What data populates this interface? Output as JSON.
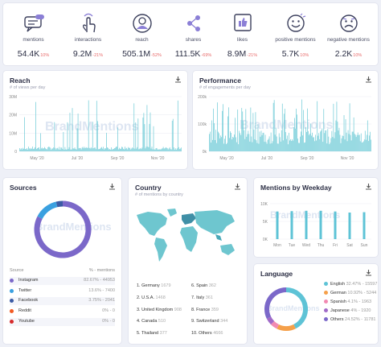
{
  "metrics": [
    {
      "label": "mentions",
      "value": "54.4K",
      "change": "10%",
      "icon": "chat-bubble-icon"
    },
    {
      "label": "interactions",
      "value": "9.2M",
      "change": "-21%",
      "icon": "hand-pointer-icon"
    },
    {
      "label": "reach",
      "value": "505.1M",
      "change": "-52%",
      "icon": "user-profile-icon"
    },
    {
      "label": "shares",
      "value": "111.5K",
      "change": "-69%",
      "icon": "share-icon"
    },
    {
      "label": "likes",
      "value": "8.9M",
      "change": "-21%",
      "icon": "thumbs-up-icon"
    },
    {
      "label": "positive mentions",
      "value": "5.7K",
      "change": "10%",
      "icon": "smiley-happy-icon"
    },
    {
      "label": "negative mentions",
      "value": "2.2K",
      "change": "10%",
      "icon": "smiley-sad-icon"
    }
  ],
  "reach": {
    "title": "Reach",
    "subtitle": "# of views per day",
    "watermark": "BrandMentions",
    "chart_data": {
      "type": "bar",
      "y_ticks": [
        "30M",
        "20M",
        "10M",
        "0"
      ],
      "x_ticks": [
        "May '20",
        "Jul '20",
        "Sep '20",
        "Nov '20"
      ],
      "ylim": [
        0,
        30000000
      ]
    }
  },
  "performance": {
    "title": "Performance",
    "subtitle": "# of engagements per day",
    "watermark": "BrandMentions",
    "chart_data": {
      "type": "bar",
      "y_ticks": [
        "200k",
        "100k",
        "0k"
      ],
      "x_ticks": [
        "May '20",
        "Jul '20",
        "Sep '20",
        "Nov '20"
      ],
      "ylim": [
        0,
        200000
      ]
    }
  },
  "sources": {
    "title": "Sources",
    "watermark": "BrandMentions",
    "col_source": "Source",
    "col_pct": "% - mentions",
    "items": [
      {
        "name": "Instagram",
        "pct": "82.67% - 44953",
        "color": "#7b68c9"
      },
      {
        "name": "Twitter",
        "pct": "13.6% - 7400",
        "color": "#3aa0e0"
      },
      {
        "name": "Facebook",
        "pct": "3.75% - 2041",
        "color": "#3b5ba5"
      },
      {
        "name": "Reddit",
        "pct": "0% - 0",
        "color": "#f25a23"
      },
      {
        "name": "Youtube",
        "pct": "0% - 0",
        "color": "#d62b2b"
      }
    ],
    "chart_data": {
      "type": "pie",
      "labels": [
        "Instagram",
        "Twitter",
        "Facebook",
        "Reddit",
        "Youtube"
      ],
      "values": [
        82.67,
        13.6,
        3.75,
        0,
        0
      ]
    }
  },
  "country": {
    "title": "Country",
    "subtitle": "# of mentions by country",
    "items": [
      {
        "label": "1. Germany",
        "count": "1679"
      },
      {
        "label": "2. U.S.A.",
        "count": "1468"
      },
      {
        "label": "3. United Kingdom",
        "count": "908"
      },
      {
        "label": "4. Canada",
        "count": "510"
      },
      {
        "label": "5. Thailand",
        "count": "377"
      },
      {
        "label": "6. Spain",
        "count": "362"
      },
      {
        "label": "7. Italy",
        "count": "361"
      },
      {
        "label": "8. France",
        "count": "359"
      },
      {
        "label": "9. Switzerland",
        "count": "344"
      },
      {
        "label": "10. Others",
        "count": "4666"
      }
    ]
  },
  "weekday": {
    "title": "Mentions by Weekday",
    "watermark": "BrandMentions",
    "chart_data": {
      "type": "bar",
      "categories": [
        "Mon",
        "Tue",
        "Wed",
        "Thu",
        "Fri",
        "Sat",
        "Sun"
      ],
      "values": [
        7800,
        7900,
        8000,
        8000,
        7800,
        7500,
        7600
      ],
      "y_ticks": [
        "10K",
        "5K",
        "0K"
      ],
      "ylim": [
        0,
        10000
      ],
      "color": "#5ec3d6"
    }
  },
  "language": {
    "title": "Language",
    "watermark": "BrandMentions",
    "items": [
      {
        "name": "English",
        "pct": "32.47% - 15597",
        "color": "#5ec3d6"
      },
      {
        "name": "German",
        "pct": "10.92% - 5244",
        "color": "#f5a04a"
      },
      {
        "name": "Spanish",
        "pct": "4.1% - 1963",
        "color": "#f28ab2"
      },
      {
        "name": "Japanese",
        "pct": "4% - 1920",
        "color": "#a06ac8"
      },
      {
        "name": "Others",
        "pct": "24.52% - 11781",
        "color": "#7b68c9"
      }
    ],
    "chart_data": {
      "type": "pie",
      "labels": [
        "English",
        "German",
        "Spanish",
        "Japanese",
        "Others"
      ],
      "values": [
        32.47,
        10.92,
        4.1,
        4,
        24.52
      ]
    }
  }
}
